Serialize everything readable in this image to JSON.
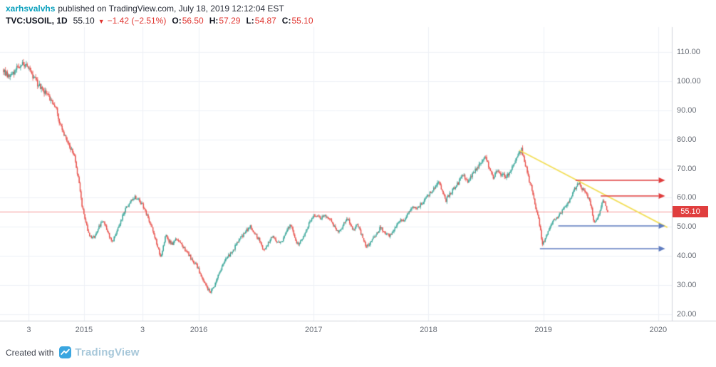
{
  "header": {
    "username": "xarhsvalvhs",
    "published": "published on TradingView.com, July 18, 2019 12:12:04 EST"
  },
  "legend": {
    "symbol": "TVC:USOIL, 1D",
    "last": "55.10",
    "direction_icon": "▼",
    "change": "−1.42 (−2.51%)",
    "open_label": "O:",
    "open": "56.50",
    "high_label": "H:",
    "high": "57.29",
    "low_label": "L:",
    "low": "54.87",
    "close_label": "C:",
    "close": "55.10"
  },
  "price_axis": {
    "labels": [
      "110.00",
      "100.00",
      "90.00",
      "80.00",
      "70.00",
      "60.00",
      "50.00",
      "40.00",
      "30.00",
      "20.00"
    ],
    "tick_values": [
      110,
      100,
      90,
      80,
      70,
      60,
      50,
      40,
      30,
      20
    ],
    "last_price_badge": "55.10"
  },
  "time_axis": {
    "ticks": [
      {
        "label": "3",
        "t": 2014.52
      },
      {
        "label": "2015",
        "t": 2015.0
      },
      {
        "label": "3",
        "t": 2015.51
      },
      {
        "label": "2016",
        "t": 2016.0
      },
      {
        "label": "2017",
        "t": 2017.0
      },
      {
        "label": "2018",
        "t": 2018.0
      },
      {
        "label": "2019",
        "t": 2019.0
      },
      {
        "label": "2020",
        "t": 2020.0
      }
    ]
  },
  "chart_data": {
    "type": "candlestick",
    "title": "TVC:USOIL daily chart with trendline, resistance and support arrows",
    "symbol": "TVC:USOIL",
    "interval": "1D",
    "x_domain_years": [
      2014.3,
      2020.1
    ],
    "ylim": [
      18,
      118
    ],
    "grid": true,
    "last_price": 55.1,
    "ohlc": {
      "open": 56.5,
      "high": 57.29,
      "low": 54.87,
      "close": 55.1
    },
    "change": -1.42,
    "change_pct": -2.51,
    "up_color": "#3aa79a",
    "down_color": "#e9544f",
    "anchors": [
      [
        2014.3,
        104
      ],
      [
        2014.34,
        101.5
      ],
      [
        2014.38,
        102.5
      ],
      [
        2014.43,
        105
      ],
      [
        2014.47,
        106.5
      ],
      [
        2014.52,
        104
      ],
      [
        2014.56,
        101
      ],
      [
        2014.6,
        99
      ],
      [
        2014.64,
        97
      ],
      [
        2014.68,
        95
      ],
      [
        2014.72,
        93
      ],
      [
        2014.76,
        90
      ],
      [
        2014.8,
        84
      ],
      [
        2014.84,
        81
      ],
      [
        2014.88,
        77
      ],
      [
        2014.92,
        74
      ],
      [
        2014.95,
        67
      ],
      [
        2014.98,
        58
      ],
      [
        2015.01,
        52
      ],
      [
        2015.04,
        48
      ],
      [
        2015.07,
        46
      ],
      [
        2015.1,
        47
      ],
      [
        2015.13,
        50
      ],
      [
        2015.16,
        52
      ],
      [
        2015.19,
        50
      ],
      [
        2015.22,
        47
      ],
      [
        2015.25,
        45
      ],
      [
        2015.28,
        48
      ],
      [
        2015.31,
        51
      ],
      [
        2015.35,
        55
      ],
      [
        2015.39,
        58
      ],
      [
        2015.43,
        60
      ],
      [
        2015.47,
        60
      ],
      [
        2015.5,
        58
      ],
      [
        2015.53,
        56
      ],
      [
        2015.56,
        53
      ],
      [
        2015.59,
        50
      ],
      [
        2015.62,
        46
      ],
      [
        2015.65,
        42
      ],
      [
        2015.67,
        39
      ],
      [
        2015.69,
        43
      ],
      [
        2015.71,
        47
      ],
      [
        2015.74,
        45
      ],
      [
        2015.77,
        44
      ],
      [
        2015.8,
        46
      ],
      [
        2015.83,
        45
      ],
      [
        2015.86,
        43
      ],
      [
        2015.89,
        42
      ],
      [
        2015.92,
        40
      ],
      [
        2015.95,
        38
      ],
      [
        2015.98,
        37
      ],
      [
        2016.01,
        34
      ],
      [
        2016.04,
        32
      ],
      [
        2016.07,
        29
      ],
      [
        2016.1,
        27.5
      ],
      [
        2016.13,
        29
      ],
      [
        2016.16,
        33
      ],
      [
        2016.19,
        35
      ],
      [
        2016.22,
        38
      ],
      [
        2016.26,
        40
      ],
      [
        2016.3,
        42
      ],
      [
        2016.34,
        45
      ],
      [
        2016.38,
        47
      ],
      [
        2016.42,
        49
      ],
      [
        2016.45,
        50
      ],
      [
        2016.48,
        48
      ],
      [
        2016.52,
        46
      ],
      [
        2016.56,
        42
      ],
      [
        2016.6,
        44
      ],
      [
        2016.64,
        47
      ],
      [
        2016.68,
        45
      ],
      [
        2016.72,
        45
      ],
      [
        2016.76,
        48
      ],
      [
        2016.8,
        51
      ],
      [
        2016.83,
        47
      ],
      [
        2016.86,
        44
      ],
      [
        2016.9,
        46
      ],
      [
        2016.94,
        49
      ],
      [
        2016.98,
        53
      ],
      [
        2017.02,
        54
      ],
      [
        2017.06,
        53
      ],
      [
        2017.1,
        54
      ],
      [
        2017.14,
        53
      ],
      [
        2017.18,
        50
      ],
      [
        2017.22,
        48
      ],
      [
        2017.26,
        51
      ],
      [
        2017.3,
        53
      ],
      [
        2017.34,
        49
      ],
      [
        2017.38,
        51
      ],
      [
        2017.42,
        47
      ],
      [
        2017.46,
        43
      ],
      [
        2017.5,
        45
      ],
      [
        2017.54,
        47
      ],
      [
        2017.58,
        50
      ],
      [
        2017.62,
        48
      ],
      [
        2017.66,
        47
      ],
      [
        2017.7,
        49
      ],
      [
        2017.74,
        52
      ],
      [
        2017.78,
        52
      ],
      [
        2017.82,
        55
      ],
      [
        2017.86,
        57
      ],
      [
        2017.9,
        56
      ],
      [
        2017.94,
        58
      ],
      [
        2017.98,
        60
      ],
      [
        2018.02,
        62
      ],
      [
        2018.06,
        64
      ],
      [
        2018.09,
        66
      ],
      [
        2018.12,
        62
      ],
      [
        2018.15,
        59
      ],
      [
        2018.18,
        61
      ],
      [
        2018.22,
        63
      ],
      [
        2018.26,
        65
      ],
      [
        2018.3,
        68
      ],
      [
        2018.34,
        65
      ],
      [
        2018.38,
        68
      ],
      [
        2018.42,
        70
      ],
      [
        2018.46,
        72
      ],
      [
        2018.5,
        74
      ],
      [
        2018.53,
        70
      ],
      [
        2018.56,
        67
      ],
      [
        2018.6,
        69
      ],
      [
        2018.64,
        68
      ],
      [
        2018.68,
        67
      ],
      [
        2018.72,
        70
      ],
      [
        2018.76,
        73
      ],
      [
        2018.79,
        75
      ],
      [
        2018.81,
        76.5
      ],
      [
        2018.84,
        72
      ],
      [
        2018.87,
        67
      ],
      [
        2018.9,
        63
      ],
      [
        2018.93,
        57
      ],
      [
        2018.96,
        53
      ],
      [
        2018.99,
        44
      ],
      [
        2019.02,
        46
      ],
      [
        2019.05,
        49
      ],
      [
        2019.08,
        52
      ],
      [
        2019.11,
        53
      ],
      [
        2019.14,
        54
      ],
      [
        2019.17,
        56
      ],
      [
        2019.2,
        57
      ],
      [
        2019.23,
        59
      ],
      [
        2019.26,
        62
      ],
      [
        2019.29,
        64
      ],
      [
        2019.31,
        65.5
      ],
      [
        2019.34,
        63
      ],
      [
        2019.37,
        62
      ],
      [
        2019.4,
        59
      ],
      [
        2019.42,
        56
      ],
      [
        2019.44,
        52
      ],
      [
        2019.46,
        52.5
      ],
      [
        2019.48,
        54
      ],
      [
        2019.5,
        57
      ],
      [
        2019.52,
        59.5
      ],
      [
        2019.54,
        57.5
      ],
      [
        2019.56,
        55.1
      ]
    ],
    "drawings": {
      "trendline": {
        "t1": 2018.79,
        "p1": 76.3,
        "t2": 2020.08,
        "p2": 49.8,
        "color": "#f3df5a"
      },
      "arrows": [
        {
          "name": "resistance-arrow-1",
          "t1": 2019.28,
          "t2": 2020.06,
          "price": 66.0,
          "color": "#e03c3c"
        },
        {
          "name": "resistance-arrow-2",
          "t1": 2019.5,
          "t2": 2020.06,
          "price": 60.6,
          "color": "#e03c3c"
        },
        {
          "name": "support-arrow-1",
          "t1": 2019.13,
          "t2": 2020.06,
          "price": 50.3,
          "color": "#5f7cc0"
        },
        {
          "name": "support-arrow-2",
          "t1": 2018.97,
          "t2": 2020.06,
          "price": 42.5,
          "color": "#5f7cc0"
        }
      ],
      "last_price_line": {
        "price": 55.1,
        "color": "#f05050"
      }
    }
  },
  "footer": {
    "created_with": "Created with",
    "brand": "TradingView"
  },
  "colors": {
    "username_teal": "#0aa0bd",
    "value_red": "#e0332e",
    "badge_bg": "#e03e3e",
    "grid": "#eef1f6",
    "axis_line": "#d1d4dc",
    "axis_text": "#686d76",
    "header_text": "#2a2e39",
    "brand_blue": "#3aa6e0",
    "brand_text": "#a8c8da"
  }
}
